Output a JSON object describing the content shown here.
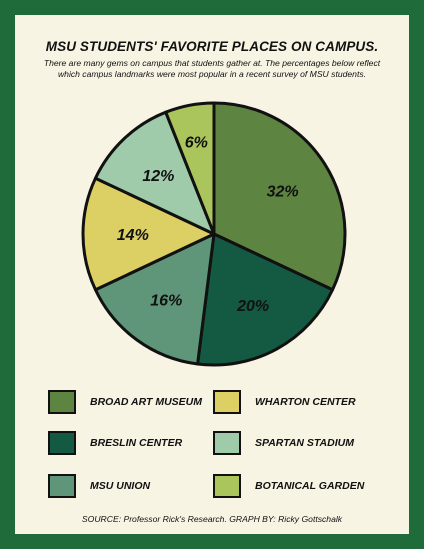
{
  "title": "MSU STUDENTS' FAVORITE PLACES ON CAMPUS.",
  "subtitle": "There are many gems on campus that students gather at. The percentages below reflect which campus landmarks were most popular in a recent survey of MSU students.",
  "source": "SOURCE: Professor Rick's Research. GRAPH BY: Ricky Gottschalk",
  "chart_data": {
    "type": "pie",
    "title": "MSU STUDENTS' FAVORITE PLACES ON CAMPUS.",
    "unit": "%",
    "legend_position": "bottom",
    "slices": [
      {
        "name": "BROAD ART MUSEUM",
        "value": 32,
        "label": "32%",
        "color": "#5d8441"
      },
      {
        "name": "BRESLIN CENTER",
        "value": 20,
        "label": "20%",
        "color": "#145a43"
      },
      {
        "name": "MSU UNION",
        "value": 16,
        "label": "16%",
        "color": "#5f9578"
      },
      {
        "name": "WHARTON CENTER",
        "value": 14,
        "label": "14%",
        "color": "#dccf63"
      },
      {
        "name": "SPARTAN STADIUM",
        "value": 12,
        "label": "12%",
        "color": "#9fcbab"
      },
      {
        "name": "BOTANICAL GARDEN",
        "value": 6,
        "label": "6%",
        "color": "#abc55d"
      }
    ]
  },
  "legend": [
    {
      "label": "BROAD ART MUSEUM",
      "color": "#5d8441"
    },
    {
      "label": "WHARTON CENTER",
      "color": "#dccf63"
    },
    {
      "label": "BRESLIN CENTER",
      "color": "#145a43"
    },
    {
      "label": "SPARTAN STADIUM",
      "color": "#9fcbab"
    },
    {
      "label": "MSU UNION",
      "color": "#5f9578"
    },
    {
      "label": "BOTANICAL GARDEN",
      "color": "#abc55d"
    }
  ]
}
